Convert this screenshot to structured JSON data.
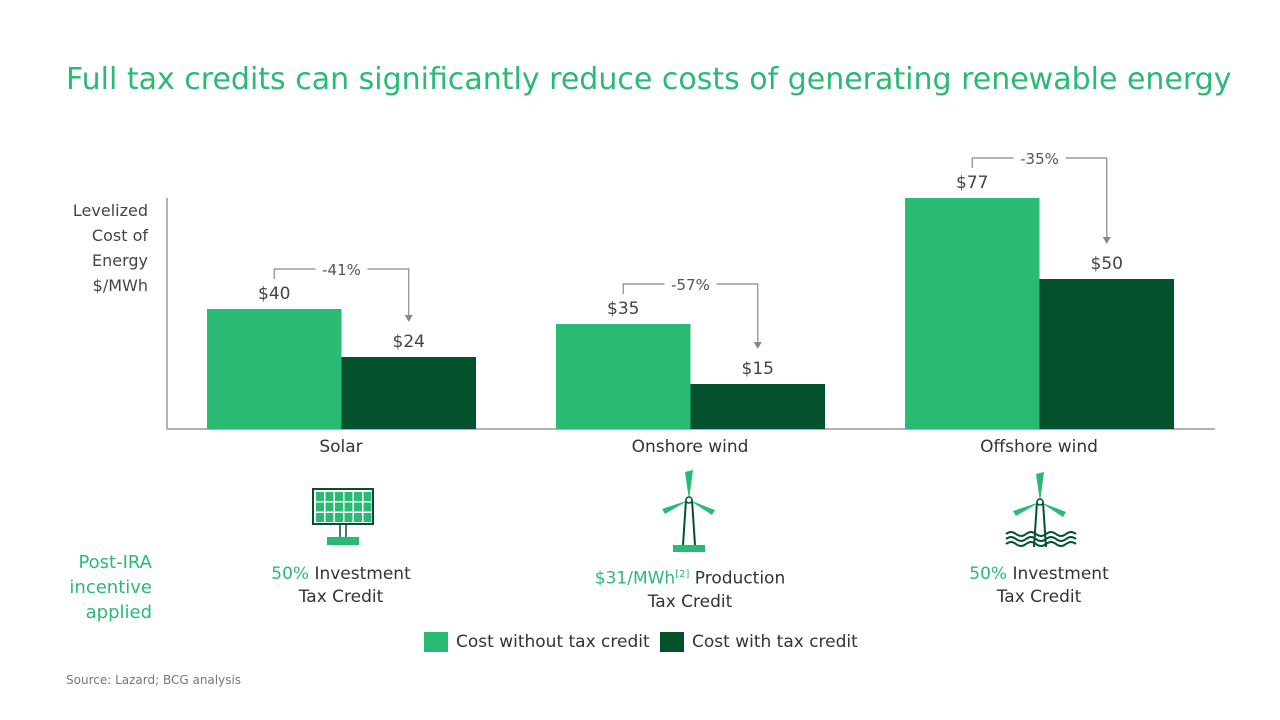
{
  "title": "Full tax credits can significantly reduce costs of generating renewable energy",
  "chart_data": {
    "type": "bar",
    "ylabel": "Levelized Cost of Energy $/MWh",
    "categories": [
      "Solar",
      "Onshore wind",
      "Offshore wind"
    ],
    "series": [
      {
        "name": "Cost without tax credit",
        "values": [
          40,
          35,
          77
        ],
        "labels": [
          "$40",
          "$35",
          "$77"
        ],
        "color": "#29ba74"
      },
      {
        "name": "Cost with tax credit",
        "values": [
          24,
          15,
          50
        ],
        "labels": [
          "$24",
          "$15",
          "$50"
        ],
        "color": "#03522d"
      }
    ],
    "changes": [
      "-41%",
      "-57%",
      "-35%"
    ],
    "ylim": [
      0,
      77
    ],
    "grid": false,
    "legend": "bottom"
  },
  "incentive_label": "Post-IRA incentive applied",
  "incentives": [
    {
      "icon": "solar-panel-icon",
      "highlight": "50%",
      "text": " Investment",
      "line2": "Tax Credit"
    },
    {
      "icon": "wind-turbine-icon",
      "highlight": "$31/MWh",
      "sup": "[2]",
      "text": " Production",
      "line2": "Tax Credit"
    },
    {
      "icon": "offshore-wind-turbine-icon",
      "highlight": "50%",
      "text": " Investment",
      "line2": "Tax Credit"
    }
  ],
  "source": "Source: Lazard; BCG analysis"
}
